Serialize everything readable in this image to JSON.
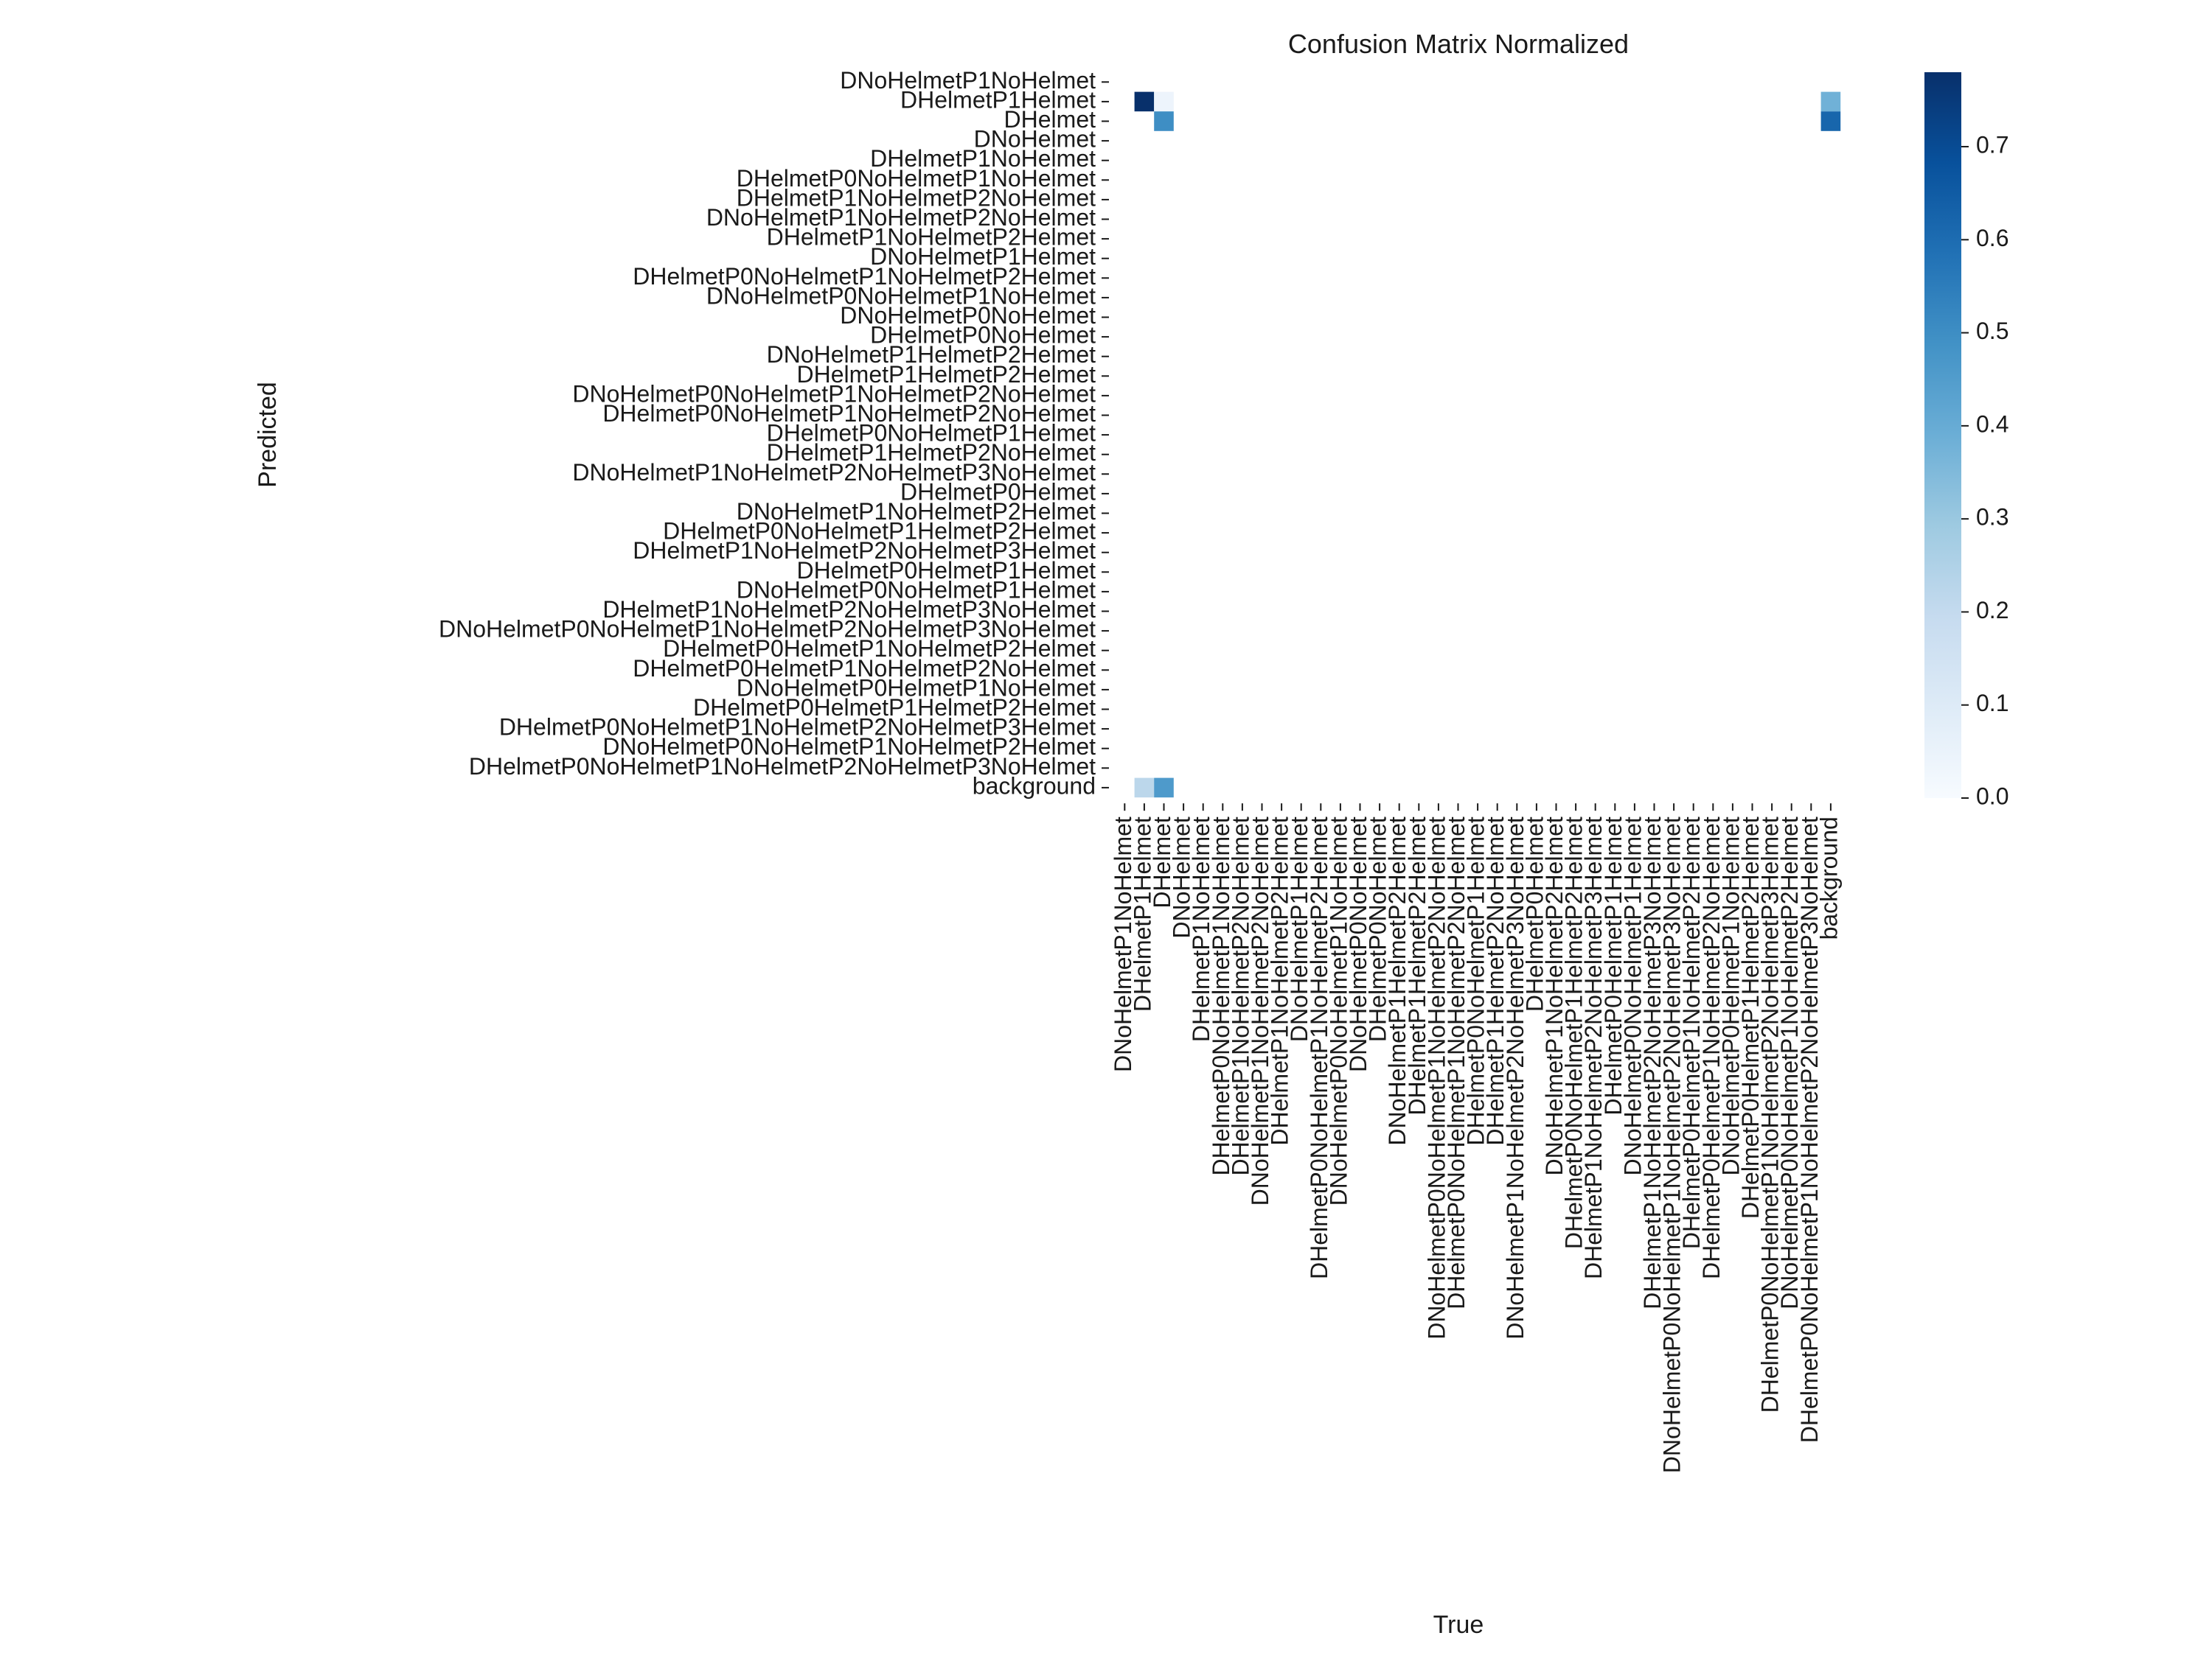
{
  "chart_data": {
    "type": "heatmap",
    "title": "Confusion Matrix Normalized",
    "xlabel": "True",
    "ylabel": "Predicted",
    "labels": [
      "DNoHelmetP1NoHelmet",
      "DHelmetP1Helmet",
      "DHelmet",
      "DNoHelmet",
      "DHelmetP1NoHelmet",
      "DHelmetP0NoHelmetP1NoHelmet",
      "DHelmetP1NoHelmetP2NoHelmet",
      "DNoHelmetP1NoHelmetP2NoHelmet",
      "DHelmetP1NoHelmetP2Helmet",
      "DNoHelmetP1Helmet",
      "DHelmetP0NoHelmetP1NoHelmetP2Helmet",
      "DNoHelmetP0NoHelmetP1NoHelmet",
      "DNoHelmetP0NoHelmet",
      "DHelmetP0NoHelmet",
      "DNoHelmetP1HelmetP2Helmet",
      "DHelmetP1HelmetP2Helmet",
      "DNoHelmetP0NoHelmetP1NoHelmetP2NoHelmet",
      "DHelmetP0NoHelmetP1NoHelmetP2NoHelmet",
      "DHelmetP0NoHelmetP1Helmet",
      "DHelmetP1HelmetP2NoHelmet",
      "DNoHelmetP1NoHelmetP2NoHelmetP3NoHelmet",
      "DHelmetP0Helmet",
      "DNoHelmetP1NoHelmetP2Helmet",
      "DHelmetP0NoHelmetP1HelmetP2Helmet",
      "DHelmetP1NoHelmetP2NoHelmetP3Helmet",
      "DHelmetP0HelmetP1Helmet",
      "DNoHelmetP0NoHelmetP1Helmet",
      "DHelmetP1NoHelmetP2NoHelmetP3NoHelmet",
      "DNoHelmetP0NoHelmetP1NoHelmetP2NoHelmetP3NoHelmet",
      "DHelmetP0HelmetP1NoHelmetP2Helmet",
      "DHelmetP0HelmetP1NoHelmetP2NoHelmet",
      "DNoHelmetP0HelmetP1NoHelmet",
      "DHelmetP0HelmetP1HelmetP2Helmet",
      "DHelmetP0NoHelmetP1NoHelmetP2NoHelmetP3Helmet",
      "DNoHelmetP0NoHelmetP1NoHelmetP2Helmet",
      "DHelmetP0NoHelmetP1NoHelmetP2NoHelmetP3NoHelmet",
      "background"
    ],
    "cells": [
      {
        "row": 1,
        "col": 1,
        "value": 0.78
      },
      {
        "row": 1,
        "col": 2,
        "value": 0.04
      },
      {
        "row": 1,
        "col": 36,
        "value": 0.38
      },
      {
        "row": 2,
        "col": 2,
        "value": 0.5
      },
      {
        "row": 2,
        "col": 36,
        "value": 0.62
      },
      {
        "row": 36,
        "col": 1,
        "value": 0.22
      },
      {
        "row": 36,
        "col": 2,
        "value": 0.46
      }
    ],
    "colorbar": {
      "min": 0.0,
      "max": 0.78,
      "ticks": [
        0.0,
        0.1,
        0.2,
        0.3,
        0.4,
        0.5,
        0.6,
        0.7
      ],
      "tick_labels": [
        "0.0",
        "0.1",
        "0.2",
        "0.3",
        "0.4",
        "0.5",
        "0.6",
        "0.7"
      ]
    },
    "colormap": "Blues",
    "colors": {
      "low": "#f7fbff",
      "high": "#08306b"
    }
  }
}
